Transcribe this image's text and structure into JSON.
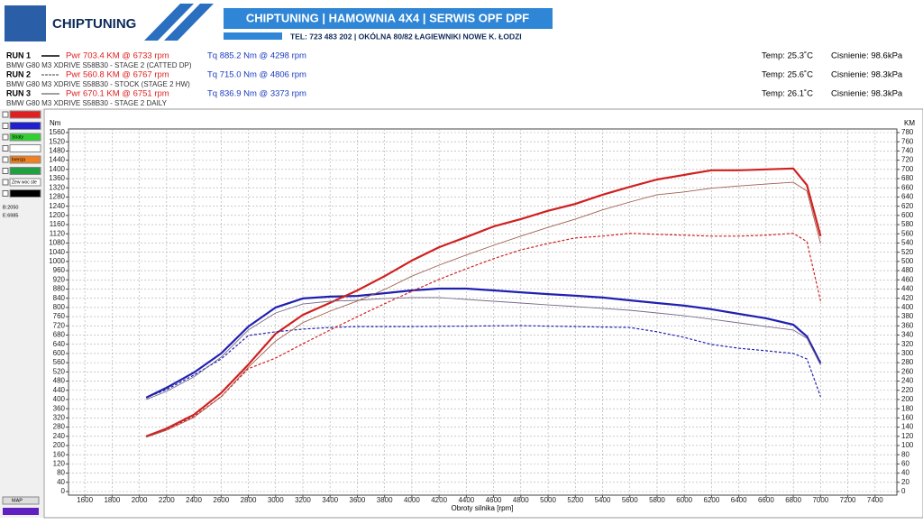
{
  "header": {
    "logo": "CHIPTUNING",
    "banner": "CHIPTUNING | HAMOWNIA 4X4 | SERWIS OPF DPF",
    "contact": "TEL: 723 483 202  |  OKÓLNA 80/82 ŁAGIEWNIKI NOWE K. ŁODZI"
  },
  "runs": [
    {
      "label": "RUN 1",
      "pwr": "Pwr  703.4 KM @ 6733 rpm",
      "tq": "Tq  885.2 Nm @ 4298 rpm",
      "desc": "BMW G80 M3 XDRIVE S58B30 - STAGE 2 (CATTED DP)",
      "temp": "Temp: 25.3˚C",
      "pressure": "Cisnienie: 98.6kPa"
    },
    {
      "label": "RUN 2",
      "pwr": "Pwr  560.8 KM @ 6767 rpm",
      "tq": "Tq  715.0 Nm @ 4806 rpm",
      "desc": "BMW G80 M3 XDRIVE S58B30 - STOCK (STAGE 2 HW)",
      "temp": "Temp: 25.6˚C",
      "pressure": "Cisnienie: 98.3kPa"
    },
    {
      "label": "RUN 3",
      "pwr": "Pwr  670.1 KM @ 6751 rpm",
      "tq": "Tq  836.9 Nm @ 3373 rpm",
      "desc": "BMW G80 M3 XDRIVE S58B30 - STAGE 2 DAILY",
      "temp": "Temp: 26.1˚C",
      "pressure": "Cisnienie: 98.3kPa"
    }
  ],
  "panel": {
    "items": [
      "Straty",
      "Inercja",
      "Zew woc ste"
    ],
    "begin": "B:2050",
    "end": "E:6985",
    "map": "MAP"
  },
  "chart_data": {
    "type": "line",
    "y_label": "Nm",
    "y2_label": "KM",
    "x_label": "Obroty silnika [rpm]",
    "grid": true,
    "x": [
      2050,
      2200,
      2400,
      2600,
      2800,
      3000,
      3200,
      3400,
      3600,
      3800,
      4000,
      4200,
      4400,
      4600,
      4800,
      5000,
      5200,
      5400,
      5600,
      5800,
      6000,
      6200,
      6400,
      6600,
      6800,
      6900,
      7000
    ],
    "xlim": [
      1480,
      7560
    ],
    "xticks": [
      1600,
      1800,
      2000,
      2200,
      2400,
      2600,
      2800,
      3000,
      3200,
      3400,
      3600,
      3800,
      4000,
      4200,
      4400,
      4600,
      4800,
      5000,
      5200,
      5400,
      5600,
      5800,
      6000,
      6200,
      6400,
      6600,
      6800,
      7000,
      7200,
      7400
    ],
    "ylim": [
      0,
      1560
    ],
    "yticks": [
      0,
      40,
      80,
      120,
      160,
      200,
      240,
      280,
      320,
      360,
      400,
      440,
      480,
      520,
      560,
      600,
      640,
      680,
      720,
      760,
      800,
      840,
      880,
      920,
      960,
      1000,
      1040,
      1080,
      1120,
      1160,
      1200,
      1240,
      1280,
      1320,
      1360,
      1400,
      1440,
      1480,
      1520,
      1560
    ],
    "y2lim": [
      0,
      780
    ],
    "y2ticks": [
      0,
      20,
      40,
      60,
      80,
      100,
      120,
      140,
      160,
      180,
      200,
      220,
      240,
      260,
      280,
      300,
      320,
      340,
      360,
      380,
      400,
      420,
      440,
      460,
      480,
      500,
      520,
      540,
      560,
      580,
      600,
      620,
      640,
      660,
      680,
      700,
      720,
      740,
      760,
      780
    ],
    "series": [
      {
        "color": "#2020b0",
        "dash": "solid",
        "width": 2.2,
        "values": [
          408,
          451,
          517,
          600,
          717,
          800,
          839,
          847,
          850,
          862,
          874,
          882,
          882,
          874,
          866,
          858,
          851,
          843,
          831,
          819,
          808,
          792,
          772,
          753,
          725,
          674,
          557
        ]
      },
      {
        "color": "#d02020",
        "dash": "solid",
        "width": 2.2,
        "axis": "y2",
        "values": [
          120,
          137,
          167,
          214,
          276,
          343,
          384,
          410,
          437,
          468,
          502,
          531,
          553,
          576,
          592,
          610,
          625,
          645,
          662,
          678,
          688,
          698,
          698,
          700,
          702,
          666,
          555
        ]
      },
      {
        "color": "#2020b0",
        "dash": "dashed",
        "width": 1.2,
        "values": [
          408,
          443,
          506,
          576,
          678,
          694,
          706,
          713,
          717,
          717,
          717,
          718,
          719,
          720,
          721,
          719,
          717,
          715,
          713,
          694,
          670,
          639,
          623,
          612,
          600,
          576,
          412
        ]
      },
      {
        "color": "#d02020",
        "dash": "dashed",
        "width": 1.2,
        "axis": "y2",
        "values": [
          120,
          135,
          163,
          206,
          267,
          290,
          321,
          351,
          380,
          408,
          435,
          461,
          484,
          506,
          525,
          539,
          551,
          555,
          561,
          559,
          557,
          555,
          555,
          557,
          561,
          543,
          414
        ]
      },
      {
        "color": "#7a6a8a",
        "dash": "solid",
        "width": 0.9,
        "values": [
          400,
          435,
          498,
          584,
          702,
          776,
          815,
          827,
          831,
          839,
          843,
          843,
          835,
          827,
          819,
          811,
          804,
          796,
          788,
          776,
          764,
          749,
          733,
          717,
          702,
          666,
          549
        ]
      },
      {
        "color": "#a06050",
        "dash": "solid",
        "width": 0.9,
        "axis": "y2",
        "values": [
          118,
          133,
          161,
          206,
          270,
          327,
          367,
          392,
          414,
          439,
          468,
          492,
          514,
          535,
          555,
          574,
          592,
          612,
          629,
          645,
          651,
          659,
          664,
          668,
          672,
          653,
          539
        ]
      }
    ]
  }
}
